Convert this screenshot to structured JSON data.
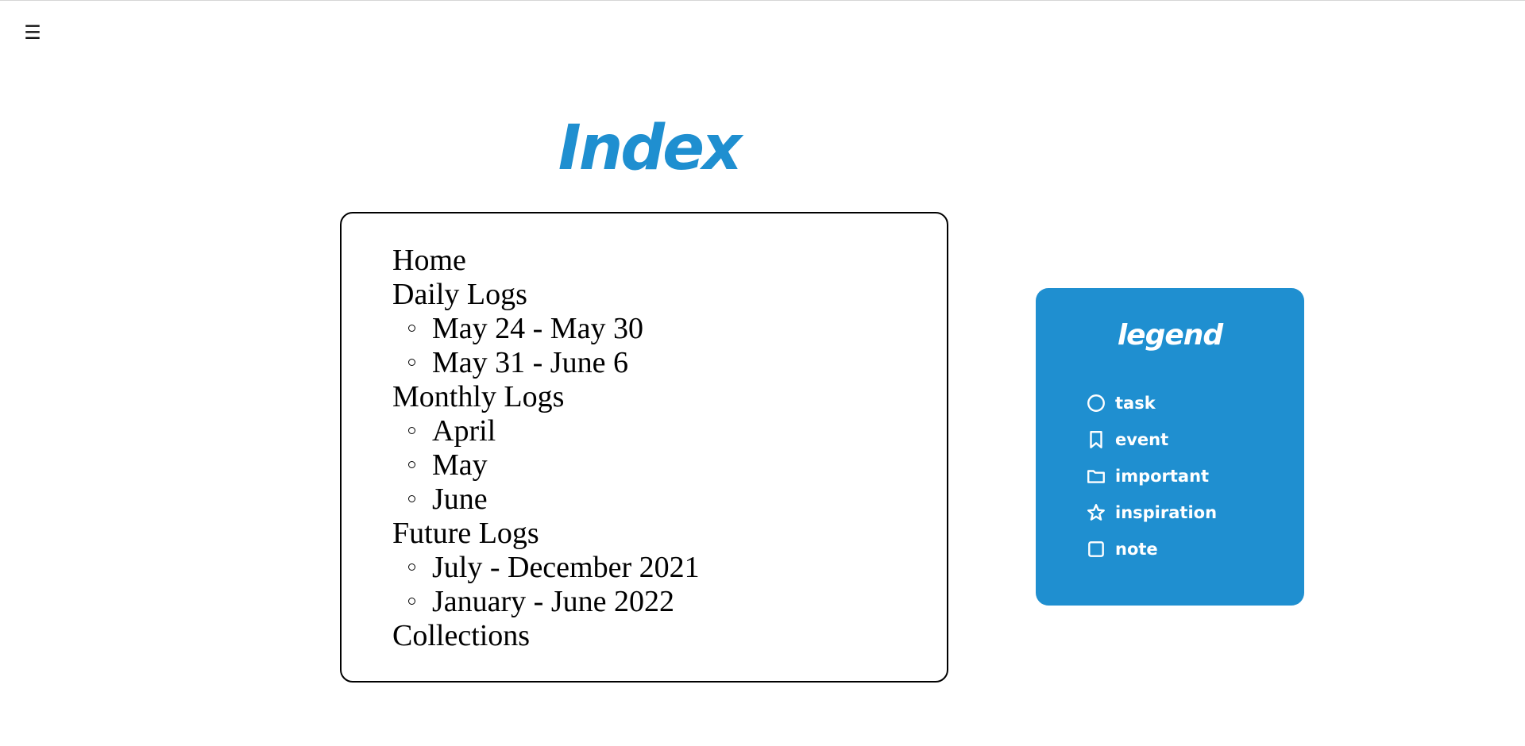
{
  "menu": {
    "icon_glyph": "☰",
    "icon": "hamburger-menu-icon"
  },
  "title": "Index",
  "accent_color": "#1f8fd0",
  "index": {
    "items": [
      {
        "label": "Home",
        "children": []
      },
      {
        "label": "Daily Logs",
        "children": [
          "May 24 - May 30",
          "May 31 - June 6"
        ]
      },
      {
        "label": "Monthly Logs",
        "children": [
          "April",
          "May",
          "June"
        ]
      },
      {
        "label": "Future Logs",
        "children": [
          "July - December 2021",
          "January - June 2022"
        ]
      },
      {
        "label": "Collections",
        "children": []
      }
    ]
  },
  "legend": {
    "title": "legend",
    "items": [
      {
        "label": "task",
        "icon": "circle-icon"
      },
      {
        "label": "event",
        "icon": "bookmark-icon"
      },
      {
        "label": "important",
        "icon": "folder-icon"
      },
      {
        "label": "inspiration",
        "icon": "star-icon"
      },
      {
        "label": "note",
        "icon": "square-icon"
      }
    ]
  }
}
